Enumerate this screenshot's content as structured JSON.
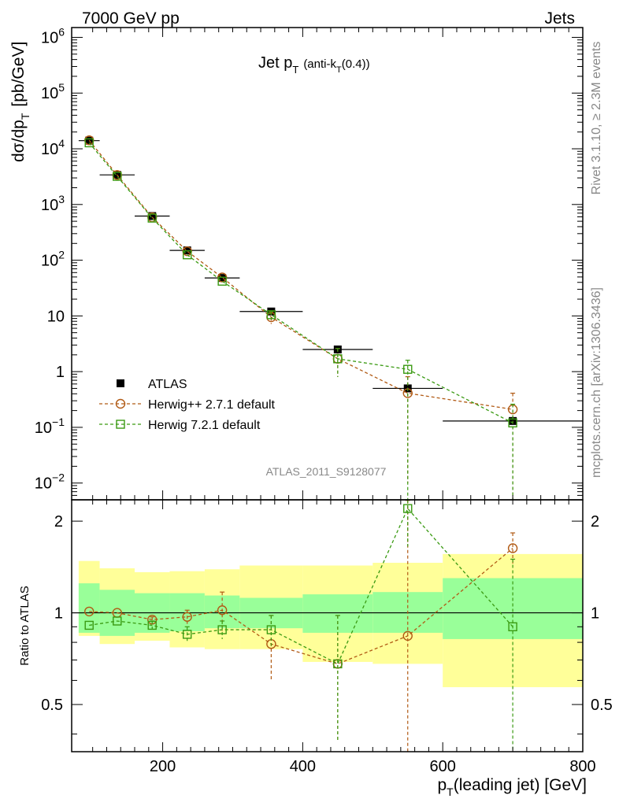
{
  "header": {
    "left": "7000 GeV pp",
    "right": "Jets"
  },
  "side_labels": {
    "rivet": "Rivet 3.1.10, ≥ 2.3M events",
    "mcplots": "mcplots.cern.ch [arXiv:1306.3436]"
  },
  "chart_data": [
    {
      "type": "scatter",
      "panel": "main",
      "title_main": "Jet p",
      "title_sub": "T",
      "title_rest": "(anti-k",
      "title_rest_sub": "T",
      "title_rest_end": "(0.4))",
      "ylabel_main": "dσ/dp",
      "ylabel_sub": "T",
      "ylabel_end": "[pb/GeV]",
      "yscale": "log",
      "ylim": [
        0.005,
        1500000
      ],
      "xlim": [
        70,
        800
      ],
      "analysis_id": "ATLAS_2011_S9128077",
      "y_ticks": [
        {
          "value": 0.01,
          "base": "10",
          "exp": "−2"
        },
        {
          "value": 0.1,
          "base": "10",
          "exp": "−1"
        },
        {
          "value": 1,
          "base": "1",
          "exp": ""
        },
        {
          "value": 10,
          "base": "10",
          "exp": ""
        },
        {
          "value": 100,
          "base": "10",
          "exp": "2"
        },
        {
          "value": 1000,
          "base": "10",
          "exp": "3"
        },
        {
          "value": 10000,
          "base": "10",
          "exp": "4"
        },
        {
          "value": 100000,
          "base": "10",
          "exp": "5"
        },
        {
          "value": 1000000,
          "base": "10",
          "exp": "6"
        }
      ],
      "legend": [
        {
          "name": "ATLAS",
          "marker": "filled-square",
          "color": "#000000"
        },
        {
          "name": "Herwig++ 2.7.1 default",
          "marker": "open-circle",
          "color": "#b15a14"
        },
        {
          "name": "Herwig 7.2.1 default",
          "marker": "open-square",
          "color": "#3a9a12"
        }
      ],
      "series": [
        {
          "name": "ATLAS",
          "x": [
            95,
            135,
            185,
            235,
            285,
            355,
            450,
            550,
            700
          ],
          "xerr": [
            15,
            25,
            25,
            25,
            25,
            45,
            50,
            50,
            100
          ],
          "y": [
            14000,
            3400,
            620,
            150,
            48,
            12,
            2.5,
            0.5,
            0.13
          ]
        },
        {
          "name": "Herwig++ 2.7.1 default",
          "x": [
            95,
            135,
            185,
            235,
            285,
            355,
            450,
            550,
            700
          ],
          "y": [
            14200,
            3380,
            590,
            145,
            49,
            9.5,
            1.7,
            0.41,
            0.21
          ],
          "yerr_low": [
            0,
            0,
            0,
            0,
            0,
            2.3,
            0.9,
            0.4,
            0.21
          ],
          "yerr_high": [
            0,
            0,
            0,
            0,
            0,
            2.3,
            0.9,
            0.4,
            0.2
          ]
        },
        {
          "name": "Herwig 7.2.1 default",
          "x": [
            95,
            135,
            185,
            235,
            285,
            355,
            450,
            550,
            700
          ],
          "y": [
            12800,
            3200,
            570,
            125,
            42,
            10.5,
            1.7,
            1.1,
            0.12
          ],
          "yerr_low": [
            0,
            0,
            0,
            0,
            0,
            1.5,
            0.9,
            1.1,
            0.12
          ],
          "yerr_high": [
            0,
            0,
            0,
            0,
            0,
            1.5,
            0.9,
            0.5,
            0.14
          ]
        }
      ]
    },
    {
      "type": "line",
      "panel": "ratio",
      "ylabel": "Ratio to ATLAS",
      "yscale": "log",
      "ylim": [
        0.35,
        2.35
      ],
      "xlim": [
        70,
        800
      ],
      "xlabel_main": "p",
      "xlabel_sub": "T",
      "xlabel_end": "(leading jet) [GeV]",
      "x_ticks": [
        200,
        400,
        600,
        800
      ],
      "y_ticks": [
        0.5,
        1,
        2
      ],
      "reference": 1,
      "bands": [
        {
          "x_low": 80,
          "x_high": 110,
          "inner": [
            0.86,
            1.25
          ],
          "outer": [
            0.84,
            1.48
          ]
        },
        {
          "x_low": 110,
          "x_high": 160,
          "inner": [
            0.84,
            1.19
          ],
          "outer": [
            0.79,
            1.4
          ]
        },
        {
          "x_low": 160,
          "x_high": 210,
          "inner": [
            0.86,
            1.16
          ],
          "outer": [
            0.81,
            1.36
          ]
        },
        {
          "x_low": 210,
          "x_high": 260,
          "inner": [
            0.87,
            1.16
          ],
          "outer": [
            0.77,
            1.37
          ]
        },
        {
          "x_low": 260,
          "x_high": 310,
          "inner": [
            0.89,
            1.14
          ],
          "outer": [
            0.76,
            1.39
          ]
        },
        {
          "x_low": 310,
          "x_high": 400,
          "inner": [
            0.89,
            1.12
          ],
          "outer": [
            0.76,
            1.43
          ]
        },
        {
          "x_low": 400,
          "x_high": 500,
          "inner": [
            0.86,
            1.15
          ],
          "outer": [
            0.69,
            1.43
          ]
        },
        {
          "x_low": 500,
          "x_high": 600,
          "inner": [
            0.86,
            1.17
          ],
          "outer": [
            0.68,
            1.46
          ]
        },
        {
          "x_low": 600,
          "x_high": 800,
          "inner": [
            0.82,
            1.3
          ],
          "outer": [
            0.57,
            1.56
          ]
        }
      ],
      "series": [
        {
          "name": "Herwig++ 2.7.1 default",
          "x": [
            95,
            135,
            185,
            235,
            285,
            355,
            450,
            550,
            700
          ],
          "y": [
            1.01,
            1.0,
            0.95,
            0.97,
            1.02,
            0.79,
            0.68,
            0.84,
            1.63
          ],
          "yerr": [
            0,
            0,
            0.02,
            0.05,
            0.15,
            0.19,
            0.3,
            1.5,
            0.2
          ]
        },
        {
          "name": "Herwig 7.2.1 default",
          "x": [
            95,
            135,
            185,
            235,
            285,
            355,
            450,
            550,
            700
          ],
          "y": [
            0.91,
            0.94,
            0.91,
            0.85,
            0.88,
            0.88,
            0.68,
            2.2,
            0.9
          ],
          "yerr": [
            0,
            0,
            0.03,
            0.05,
            0.06,
            0.1,
            0.3,
            0.55,
            0.6
          ]
        }
      ]
    }
  ]
}
